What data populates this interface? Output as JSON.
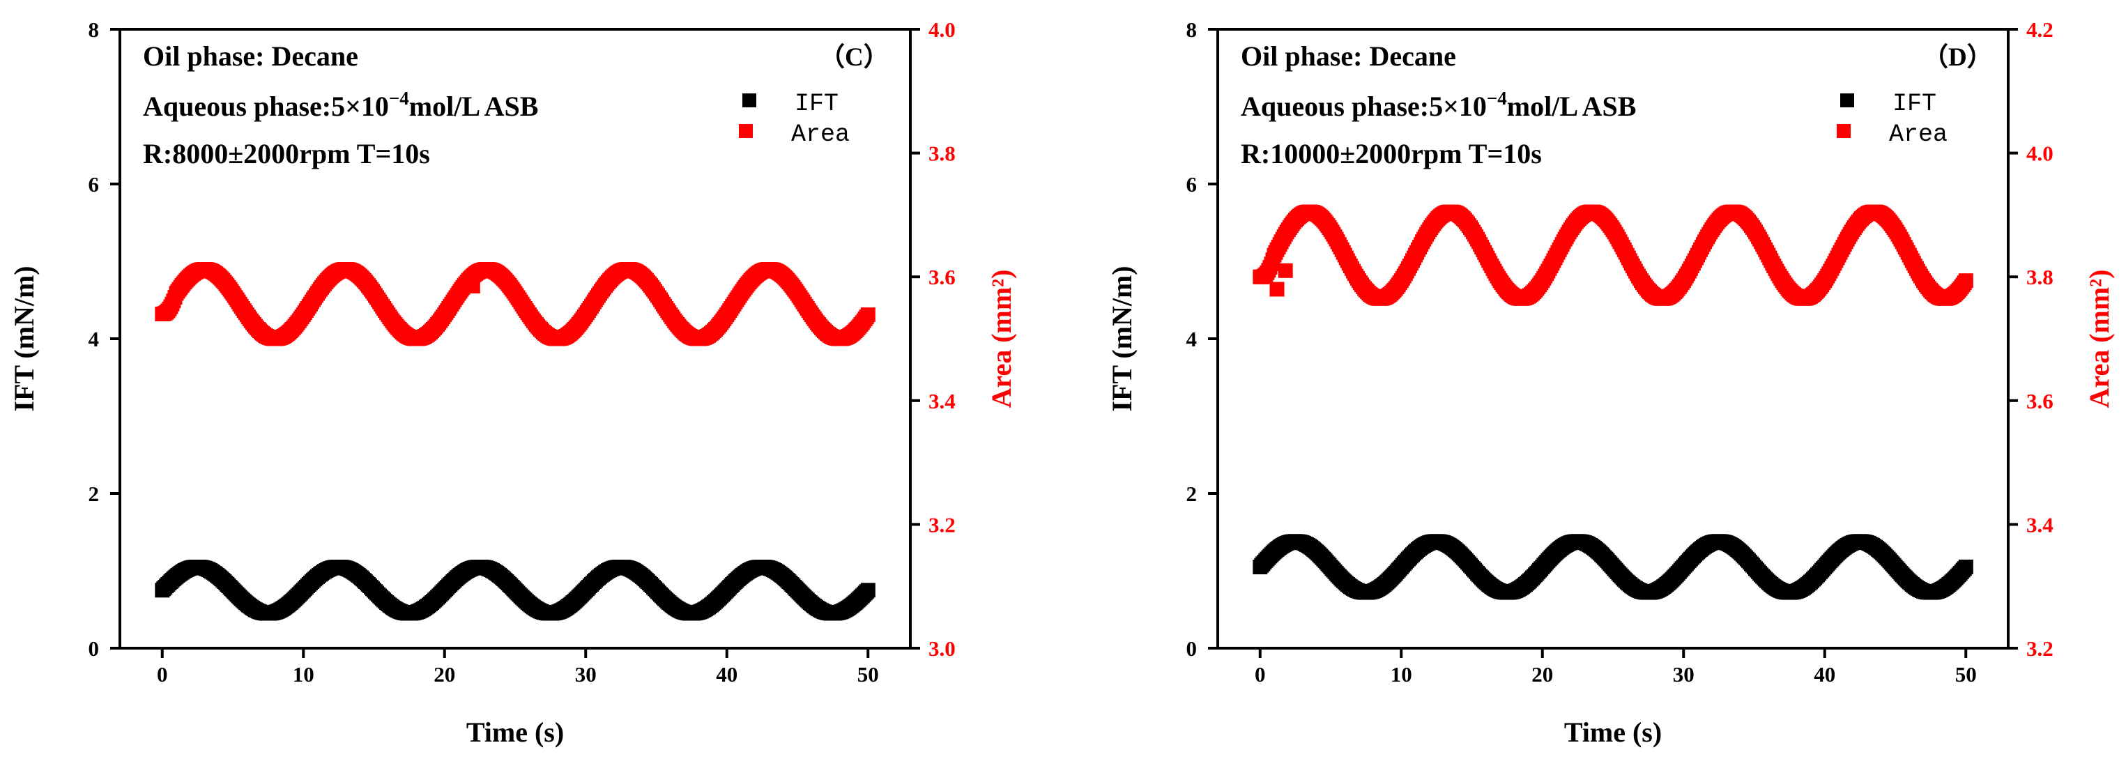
{
  "chart_data": [
    {
      "type": "scatter",
      "panel_label": "（C）",
      "title": "",
      "xlabel": "Time (s)",
      "ylabel": "IFT (mN/m)",
      "ylabel_right": "Area (mm²)",
      "xlim": [
        -3,
        53
      ],
      "ylim": [
        0,
        8
      ],
      "ylim_right": [
        3.0,
        4.0
      ],
      "xticks": [
        0,
        10,
        20,
        30,
        40,
        50
      ],
      "yticks": [
        0,
        2,
        4,
        6,
        8
      ],
      "yticks_right": [
        3.0,
        3.2,
        3.4,
        3.6,
        3.8,
        4.0
      ],
      "annotations": [
        "Oil phase: Decane",
        "Aqueous phase:5×10",
        "−4",
        "mol/L ASB",
        "R:8000±2000rpm   T=10s"
      ],
      "legend": [
        "IFT",
        "Area"
      ],
      "series": [
        {
          "name": "IFT",
          "axis": "left",
          "color": "#000000",
          "period": 10,
          "mean": 0.75,
          "amplitude": 0.3,
          "phase_peak_time": 2.5,
          "x_range": [
            0,
            50
          ],
          "points_per_second": 10
        },
        {
          "name": "Area",
          "axis": "right",
          "color": "#ff0000",
          "period": 10,
          "mean": 3.556,
          "amplitude": 0.056,
          "phase_peak_time": 3.0,
          "x_range": [
            0,
            50
          ],
          "points_per_second": 10,
          "start_value": 3.54,
          "outliers": [
            {
              "x": 22.0,
              "y": 3.585
            }
          ]
        }
      ]
    },
    {
      "type": "scatter",
      "panel_label": "（D）",
      "title": "",
      "xlabel": "Time (s)",
      "ylabel": "IFT (mN/m)",
      "ylabel_right": "Area (mm²)",
      "xlim": [
        -3,
        53
      ],
      "ylim": [
        0,
        8
      ],
      "ylim_right": [
        3.2,
        4.2
      ],
      "xticks": [
        0,
        10,
        20,
        30,
        40,
        50
      ],
      "yticks": [
        0,
        2,
        4,
        6,
        8
      ],
      "yticks_right": [
        3.2,
        3.4,
        3.6,
        3.8,
        4.0,
        4.2
      ],
      "annotations": [
        "Oil phase: Decane",
        "Aqueous phase:5×10",
        "−4",
        "mol/L ASB",
        "R:10000±2000rpm   T=10s"
      ],
      "legend": [
        "IFT",
        "Area"
      ],
      "series": [
        {
          "name": "IFT",
          "axis": "left",
          "color": "#000000",
          "period": 10,
          "mean": 1.05,
          "amplitude": 0.33,
          "phase_peak_time": 2.5,
          "x_range": [
            0,
            50
          ],
          "points_per_second": 10
        },
        {
          "name": "Area",
          "axis": "right",
          "color": "#ff0000",
          "period": 10,
          "mean": 3.835,
          "amplitude": 0.07,
          "phase_peak_time": 3.5,
          "x_range": [
            0,
            50
          ],
          "points_per_second": 10,
          "start_value": 3.8,
          "outliers": [
            {
              "x": 1.2,
              "y": 3.78
            },
            {
              "x": 1.8,
              "y": 3.81
            }
          ]
        }
      ]
    }
  ]
}
